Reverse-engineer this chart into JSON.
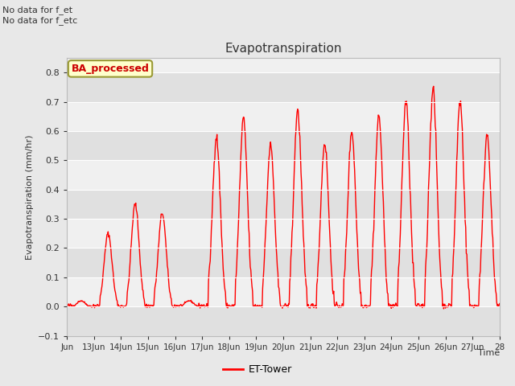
{
  "title": "Evapotranspiration",
  "xlabel": "Time",
  "ylabel": "Evapotranspiration (mm/hr)",
  "ylim": [
    -0.1,
    0.85
  ],
  "yticks": [
    -0.1,
    0.0,
    0.1,
    0.2,
    0.3,
    0.4,
    0.5,
    0.6,
    0.7,
    0.8
  ],
  "line_color": "red",
  "line_width": 1.0,
  "fig_bg_color": "#e8e8e8",
  "plot_bg_color": "#f0f0f0",
  "stripe_color": "#e0e0e0",
  "text_color": "#333333",
  "top_left_text_line1": "No data for f_et",
  "top_left_text_line2": "No data for f_etc",
  "box_label": "BA_processed",
  "box_facecolor": "#ffffcc",
  "box_edgecolor": "#999933",
  "legend_label": "ET-Tower",
  "xtick_labels": [
    "Jun",
    "13Jun",
    "14Jun",
    "15Jun",
    "16Jun",
    "17Jun",
    "18Jun",
    "19Jun",
    "20Jun",
    "21Jun",
    "22Jun",
    "23Jun",
    "24Jun",
    "25Jun",
    "26Jun",
    "27Jun",
    "28"
  ],
  "peaks": [
    0.02,
    0.25,
    0.35,
    0.32,
    0.02,
    0.58,
    0.64,
    0.55,
    0.67,
    0.56,
    0.6,
    0.65,
    0.7,
    0.74,
    0.7,
    0.59
  ],
  "seed": 42
}
